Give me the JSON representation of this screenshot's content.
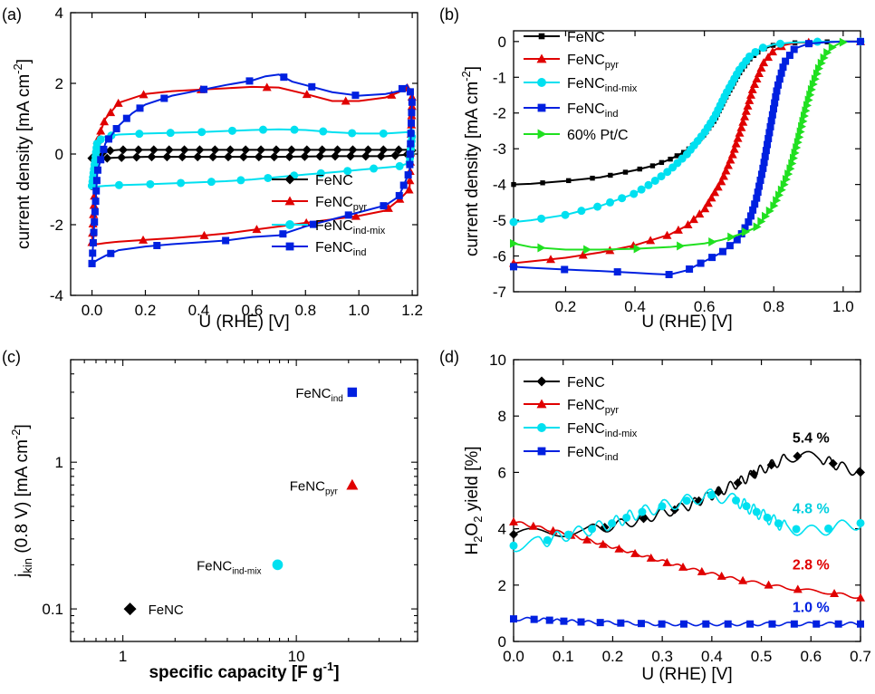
{
  "chart_data": [
    {
      "panel_label": "(a)",
      "type": "line",
      "xlabel": "U (RHE) [V]",
      "ylabel": "current density [mA cm-2]",
      "ylabel_main": "current density [mA cm",
      "ylabel_sup": "-2",
      "ylabel_end": "]",
      "xlim": [
        -0.08,
        1.22
      ],
      "ylim": [
        -4,
        4
      ],
      "xticks": [
        0.0,
        0.2,
        0.4,
        0.6,
        0.8,
        1.0,
        1.2
      ],
      "yticks": [
        -4,
        -2,
        0,
        2,
        4
      ],
      "legend_position": "bottom-right",
      "series": [
        {
          "name": "FeNC",
          "name_base": "FeNC",
          "name_sub": "",
          "color": "#000000",
          "marker": "diamond",
          "x": [
            0.0,
            0.05,
            0.1,
            0.2,
            0.3,
            0.4,
            0.5,
            0.6,
            0.7,
            0.8,
            0.9,
            1.0,
            1.1,
            1.18,
            1.2,
            1.18,
            1.1,
            1.0,
            0.9,
            0.8,
            0.7,
            0.6,
            0.5,
            0.4,
            0.3,
            0.2,
            0.1,
            0.05,
            0.0
          ],
          "y": [
            -0.12,
            0.08,
            0.12,
            0.12,
            0.12,
            0.12,
            0.12,
            0.12,
            0.12,
            0.12,
            0.12,
            0.12,
            0.12,
            0.12,
            0.1,
            -0.02,
            -0.06,
            -0.06,
            -0.06,
            -0.07,
            -0.08,
            -0.08,
            -0.08,
            -0.08,
            -0.08,
            -0.08,
            -0.1,
            -0.12,
            -0.12
          ]
        },
        {
          "name": "FeNCpyr",
          "name_base": "FeNC",
          "name_sub": "pyr",
          "color": "#e00000",
          "marker": "triangle",
          "x": [
            0.0,
            0.02,
            0.05,
            0.1,
            0.2,
            0.3,
            0.4,
            0.5,
            0.6,
            0.7,
            0.8,
            0.9,
            1.0,
            1.1,
            1.15,
            1.18,
            1.2,
            1.19,
            1.15,
            1.1,
            1.0,
            0.9,
            0.8,
            0.7,
            0.6,
            0.5,
            0.4,
            0.3,
            0.2,
            0.1,
            0.05,
            0.02,
            0.0
          ],
          "y": [
            -2.5,
            0.4,
            1.0,
            1.45,
            1.7,
            1.78,
            1.82,
            1.86,
            1.9,
            1.88,
            1.7,
            1.5,
            1.5,
            1.6,
            1.75,
            1.9,
            1.6,
            -1.0,
            -1.3,
            -1.6,
            -1.75,
            -1.85,
            -1.95,
            -2.05,
            -2.15,
            -2.25,
            -2.32,
            -2.38,
            -2.43,
            -2.48,
            -2.52,
            -2.55,
            -2.5
          ]
        },
        {
          "name": "FeNCind-mix",
          "name_base": "FeNC",
          "name_sub": "ind-mix",
          "color": "#00e0f0",
          "marker": "circle",
          "x": [
            0.0,
            0.02,
            0.05,
            0.1,
            0.2,
            0.3,
            0.4,
            0.5,
            0.6,
            0.7,
            0.8,
            0.9,
            1.0,
            1.1,
            1.18,
            1.2,
            1.19,
            1.15,
            1.1,
            1.0,
            0.9,
            0.8,
            0.7,
            0.6,
            0.5,
            0.4,
            0.3,
            0.2,
            0.1,
            0.05,
            0.02,
            0.0
          ],
          "y": [
            -0.9,
            0.35,
            0.5,
            0.55,
            0.58,
            0.6,
            0.62,
            0.65,
            0.68,
            0.7,
            0.68,
            0.62,
            0.58,
            0.58,
            0.62,
            0.6,
            -0.25,
            -0.35,
            -0.38,
            -0.45,
            -0.52,
            -0.58,
            -0.65,
            -0.72,
            -0.77,
            -0.8,
            -0.83,
            -0.86,
            -0.88,
            -0.9,
            -0.92,
            -0.9
          ]
        },
        {
          "name": "FeNCind",
          "name_base": "FeNC",
          "name_sub": "ind",
          "color": "#0020e0",
          "marker": "square",
          "x": [
            0.0,
            0.02,
            0.05,
            0.1,
            0.15,
            0.2,
            0.3,
            0.4,
            0.5,
            0.6,
            0.65,
            0.7,
            0.75,
            0.8,
            0.9,
            1.0,
            1.1,
            1.15,
            1.18,
            1.2,
            1.19,
            1.15,
            1.1,
            1.0,
            0.9,
            0.8,
            0.7,
            0.6,
            0.5,
            0.4,
            0.3,
            0.2,
            0.1,
            0.05,
            0.02,
            0.0
          ],
          "y": [
            -3.1,
            -0.5,
            0.3,
            0.8,
            1.15,
            1.4,
            1.65,
            1.8,
            1.95,
            2.08,
            2.2,
            2.25,
            2.05,
            1.95,
            1.75,
            1.65,
            1.7,
            1.78,
            1.95,
            1.65,
            -0.5,
            -1.2,
            -1.45,
            -1.65,
            -1.85,
            -2.05,
            -2.3,
            -2.35,
            -2.45,
            -2.5,
            -2.55,
            -2.62,
            -2.72,
            -2.88,
            -3.0,
            -3.1
          ]
        }
      ]
    },
    {
      "panel_label": "(b)",
      "type": "line",
      "xlabel": "U (RHE) [V]",
      "ylabel": "current density [mA cm-2]",
      "ylabel_main": "current density [mA cm",
      "ylabel_sup": "-2",
      "ylabel_end": "]",
      "xlim": [
        0.05,
        1.05
      ],
      "ylim": [
        -7,
        0.3
      ],
      "xticks": [
        0.2,
        0.4,
        0.6,
        0.8,
        1.0
      ],
      "yticks": [
        -7,
        -6,
        -5,
        -4,
        -3,
        -2,
        -1,
        0
      ],
      "legend_position": "top-left",
      "series": [
        {
          "name": "FeNC",
          "name_base": "FeNC",
          "name_sub": "",
          "color": "#000000",
          "marker": "square-small",
          "x": [
            0.05,
            0.1,
            0.2,
            0.3,
            0.4,
            0.45,
            0.5,
            0.55,
            0.6,
            0.63,
            0.66,
            0.7,
            0.73,
            0.76,
            0.8,
            0.85,
            0.9,
            0.95,
            1.0,
            1.05
          ],
          "y": [
            -4.0,
            -3.98,
            -3.9,
            -3.8,
            -3.6,
            -3.48,
            -3.3,
            -3.05,
            -2.6,
            -2.2,
            -1.6,
            -0.9,
            -0.5,
            -0.25,
            -0.1,
            -0.04,
            -0.02,
            -0.01,
            0,
            0
          ]
        },
        {
          "name": "FeNCpyr",
          "name_base": "FeNC",
          "name_sub": "pyr",
          "color": "#e00000",
          "marker": "triangle",
          "x": [
            0.05,
            0.1,
            0.2,
            0.3,
            0.4,
            0.5,
            0.55,
            0.6,
            0.65,
            0.68,
            0.71,
            0.74,
            0.77,
            0.8,
            0.83,
            0.86,
            0.9,
            0.95,
            1.0,
            1.05
          ],
          "y": [
            -6.2,
            -6.15,
            -6.05,
            -5.9,
            -5.7,
            -5.4,
            -5.15,
            -4.7,
            -3.9,
            -3.2,
            -2.3,
            -1.3,
            -0.6,
            -0.25,
            -0.1,
            -0.04,
            -0.02,
            -0.01,
            0,
            0
          ]
        },
        {
          "name": "FeNCind-mix",
          "name_base": "FeNC",
          "name_sub": "ind-mix",
          "color": "#00e0f0",
          "marker": "circle",
          "x": [
            0.05,
            0.1,
            0.2,
            0.3,
            0.4,
            0.45,
            0.5,
            0.55,
            0.6,
            0.63,
            0.66,
            0.7,
            0.73,
            0.76,
            0.8,
            0.85,
            0.9,
            0.95,
            1.0,
            1.05
          ],
          "y": [
            -5.05,
            -5.0,
            -4.85,
            -4.6,
            -4.25,
            -3.95,
            -3.6,
            -3.15,
            -2.55,
            -2.1,
            -1.5,
            -0.8,
            -0.42,
            -0.2,
            -0.08,
            -0.03,
            -0.01,
            0,
            0,
            0
          ]
        },
        {
          "name": "FeNCind",
          "name_base": "FeNC",
          "name_sub": "ind",
          "color": "#0020e0",
          "marker": "square",
          "x": [
            0.05,
            0.1,
            0.2,
            0.3,
            0.4,
            0.45,
            0.5,
            0.55,
            0.6,
            0.65,
            0.7,
            0.73,
            0.75,
            0.77,
            0.79,
            0.81,
            0.83,
            0.86,
            0.9,
            0.95,
            1.0,
            1.05
          ],
          "y": [
            -6.3,
            -6.33,
            -6.38,
            -6.42,
            -6.47,
            -6.5,
            -6.52,
            -6.4,
            -6.15,
            -5.9,
            -5.5,
            -5.0,
            -4.4,
            -3.5,
            -2.4,
            -1.3,
            -0.6,
            -0.2,
            -0.06,
            -0.02,
            0,
            0
          ]
        },
        {
          "name": "60% Pt/C",
          "name_base": "60% Pt/C",
          "name_sub": "",
          "color": "#20e020",
          "marker": "triangle-right",
          "x": [
            0.05,
            0.1,
            0.2,
            0.3,
            0.4,
            0.5,
            0.6,
            0.65,
            0.7,
            0.75,
            0.8,
            0.83,
            0.85,
            0.87,
            0.89,
            0.91,
            0.93,
            0.95,
            0.97,
            0.99,
            1.0
          ],
          "y": [
            -5.65,
            -5.75,
            -5.82,
            -5.82,
            -5.8,
            -5.75,
            -5.65,
            -5.55,
            -5.4,
            -5.2,
            -4.6,
            -4.0,
            -3.5,
            -2.8,
            -2.0,
            -1.3,
            -0.75,
            -0.35,
            -0.15,
            -0.05,
            -0.02
          ]
        }
      ]
    },
    {
      "panel_label": "(c)",
      "type": "scatter",
      "xlabel": "specific capacity  [F g-1]",
      "xlabel_main": "specific capacity  [F g",
      "xlabel_sup": "-1",
      "xlabel_end": "]",
      "ylabel": "jkin (0.8 V) [mA cm-2]",
      "ylabel_j": "j",
      "ylabel_kin": "kin",
      "ylabel_mid": " (0.8 V) [mA cm",
      "ylabel_sup": "-2",
      "ylabel_end": "]",
      "x_scale": "log",
      "y_scale": "log",
      "xlim": [
        0.5,
        50
      ],
      "ylim": [
        0.06,
        5
      ],
      "xticks": [
        1,
        10
      ],
      "xtick_labels": [
        "1",
        "10"
      ],
      "yticks": [
        0.1,
        1
      ],
      "ytick_labels": [
        "0.1",
        "1"
      ],
      "points": [
        {
          "label": "FeNC",
          "label_base": "FeNC",
          "label_sub": "",
          "x": 1.1,
          "y": 0.1,
          "color": "#000000",
          "marker": "diamond"
        },
        {
          "label": "FeNCind-mix",
          "label_base": "FeNC",
          "label_sub": "ind-mix",
          "x": 7.8,
          "y": 0.2,
          "color": "#00e0f0",
          "marker": "circle"
        },
        {
          "label": "FeNCpyr",
          "label_base": "FeNC",
          "label_sub": "pyr",
          "x": 21,
          "y": 0.7,
          "color": "#e00000",
          "marker": "triangle"
        },
        {
          "label": "FeNCind",
          "label_base": "FeNC",
          "label_sub": "ind",
          "x": 21,
          "y": 3.0,
          "color": "#0020e0",
          "marker": "square"
        }
      ]
    },
    {
      "panel_label": "(d)",
      "type": "line",
      "xlabel": "U (RHE) [V]",
      "ylabel": "H2O2 yield [%]",
      "ylabel_h": "H",
      "ylabel_2a": "2",
      "ylabel_o": "O",
      "ylabel_2b": "2",
      "ylabel_end": " yield [%]",
      "xlim": [
        0.0,
        0.7
      ],
      "ylim": [
        0,
        10
      ],
      "xticks": [
        0.0,
        0.1,
        0.2,
        0.3,
        0.4,
        0.5,
        0.6,
        0.7
      ],
      "yticks": [
        0,
        2,
        4,
        6,
        8,
        10
      ],
      "legend_position": "top-left",
      "annotations": [
        {
          "text": "5.4 %",
          "color": "#000000",
          "x": 0.6,
          "y": 7.05
        },
        {
          "text": "4.8 %",
          "color": "#00d0e0",
          "x": 0.6,
          "y": 4.55
        },
        {
          "text": "2.8 %",
          "color": "#e00000",
          "x": 0.6,
          "y": 2.55
        },
        {
          "text": "1.0 %",
          "color": "#0020e0",
          "x": 0.6,
          "y": 1.05
        }
      ],
      "series": [
        {
          "name": "FeNC",
          "name_base": "FeNC",
          "name_sub": "",
          "color": "#000000",
          "marker": "diamond",
          "x": [
            0.0,
            0.05,
            0.1,
            0.15,
            0.2,
            0.25,
            0.3,
            0.35,
            0.4,
            0.45,
            0.5,
            0.55,
            0.58,
            0.62,
            0.66,
            0.7
          ],
          "y": [
            3.8,
            3.85,
            3.9,
            3.95,
            4.1,
            4.3,
            4.55,
            4.8,
            5.2,
            5.6,
            6.1,
            6.5,
            6.6,
            6.5,
            6.2,
            6.0
          ]
        },
        {
          "name": "FeNCpyr",
          "name_base": "FeNC",
          "name_sub": "pyr",
          "color": "#e00000",
          "marker": "triangle",
          "x": [
            0.0,
            0.05,
            0.1,
            0.15,
            0.2,
            0.25,
            0.3,
            0.35,
            0.4,
            0.45,
            0.5,
            0.55,
            0.6,
            0.65,
            0.7
          ],
          "y": [
            4.25,
            4.05,
            3.85,
            3.6,
            3.35,
            3.1,
            2.85,
            2.6,
            2.4,
            2.2,
            2.05,
            1.9,
            1.8,
            1.7,
            1.55
          ]
        },
        {
          "name": "FeNCind-mix",
          "name_base": "FeNC",
          "name_sub": "ind-mix",
          "color": "#00e0f0",
          "marker": "circle",
          "x": [
            0.0,
            0.05,
            0.1,
            0.15,
            0.2,
            0.25,
            0.3,
            0.35,
            0.4,
            0.45,
            0.5,
            0.55,
            0.6,
            0.65,
            0.7
          ],
          "y": [
            3.4,
            3.5,
            3.75,
            3.95,
            4.2,
            4.55,
            4.8,
            5.0,
            5.2,
            5.0,
            4.5,
            4.05,
            3.9,
            4.05,
            4.2
          ]
        },
        {
          "name": "FeNCind",
          "name_base": "FeNC",
          "name_sub": "ind",
          "color": "#0020e0",
          "marker": "square",
          "x": [
            0.0,
            0.05,
            0.1,
            0.15,
            0.2,
            0.25,
            0.3,
            0.35,
            0.4,
            0.45,
            0.5,
            0.55,
            0.6,
            0.65,
            0.7
          ],
          "y": [
            0.8,
            0.78,
            0.72,
            0.68,
            0.66,
            0.64,
            0.62,
            0.62,
            0.62,
            0.62,
            0.62,
            0.62,
            0.62,
            0.62,
            0.62
          ]
        }
      ]
    }
  ]
}
